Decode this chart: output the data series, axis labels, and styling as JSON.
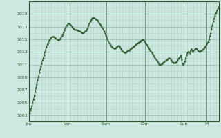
{
  "background_color": "#cce8e0",
  "line_color": "#2d5a2d",
  "marker_color": "#2d5a2d",
  "grid_color_minor": "#b0d4c8",
  "grid_color_major": "#8ab8a8",
  "axis_label_color": "#2d5a2d",
  "spine_color": "#2d5a2d",
  "ylim": [
    1002,
    1021
  ],
  "yticks": [
    1003,
    1005,
    1007,
    1009,
    1011,
    1013,
    1015,
    1017,
    1019
  ],
  "day_labels": [
    "Jeu",
    "Ven",
    "Sam",
    "Dim",
    "Lun",
    "M"
  ],
  "day_positions": [
    0,
    48,
    96,
    144,
    192,
    220
  ],
  "values": [
    1003.0,
    1003.3,
    1003.7,
    1004.1,
    1004.5,
    1005.0,
    1005.5,
    1006.1,
    1006.7,
    1007.3,
    1007.9,
    1008.5,
    1009.1,
    1009.7,
    1010.2,
    1010.7,
    1011.2,
    1011.7,
    1012.1,
    1012.5,
    1013.0,
    1013.4,
    1013.8,
    1014.2,
    1014.5,
    1014.8,
    1015.0,
    1015.2,
    1015.3,
    1015.4,
    1015.4,
    1015.4,
    1015.3,
    1015.2,
    1015.1,
    1015.0,
    1014.9,
    1014.9,
    1015.0,
    1015.1,
    1015.3,
    1015.5,
    1015.8,
    1016.1,
    1016.4,
    1016.7,
    1017.0,
    1017.2,
    1017.4,
    1017.5,
    1017.5,
    1017.4,
    1017.3,
    1017.1,
    1016.9,
    1016.7,
    1016.6,
    1016.5,
    1016.5,
    1016.5,
    1016.4,
    1016.4,
    1016.3,
    1016.3,
    1016.2,
    1016.1,
    1016.0,
    1016.0,
    1016.1,
    1016.2,
    1016.3,
    1016.4,
    1016.6,
    1016.9,
    1017.2,
    1017.5,
    1017.8,
    1018.1,
    1018.3,
    1018.4,
    1018.4,
    1018.4,
    1018.3,
    1018.2,
    1018.1,
    1018.0,
    1017.8,
    1017.6,
    1017.4,
    1017.2,
    1017.0,
    1016.8,
    1016.6,
    1016.3,
    1016.0,
    1015.7,
    1015.4,
    1015.1,
    1014.8,
    1014.5,
    1014.3,
    1014.1,
    1013.9,
    1013.8,
    1013.7,
    1013.6,
    1013.6,
    1013.6,
    1013.7,
    1013.8,
    1013.9,
    1014.0,
    1013.9,
    1013.7,
    1013.5,
    1013.3,
    1013.1,
    1013.0,
    1012.9,
    1012.9,
    1012.9,
    1013.0,
    1013.1,
    1013.2,
    1013.3,
    1013.4,
    1013.5,
    1013.6,
    1013.7,
    1013.8,
    1013.9,
    1014.0,
    1014.1,
    1014.2,
    1014.3,
    1014.4,
    1014.5,
    1014.6,
    1014.7,
    1014.8,
    1014.9,
    1015.0,
    1014.9,
    1014.7,
    1014.5,
    1014.3,
    1014.1,
    1013.9,
    1013.7,
    1013.5,
    1013.3,
    1013.1,
    1012.9,
    1012.7,
    1012.5,
    1012.3,
    1012.1,
    1011.9,
    1011.7,
    1011.5,
    1011.3,
    1011.1,
    1011.0,
    1011.0,
    1011.1,
    1011.2,
    1011.3,
    1011.4,
    1011.5,
    1011.6,
    1011.7,
    1011.8,
    1011.9,
    1012.0,
    1012.0,
    1011.9,
    1011.7,
    1011.5,
    1011.4,
    1011.3,
    1011.3,
    1011.3,
    1011.4,
    1011.5,
    1011.7,
    1011.9,
    1012.1,
    1012.3,
    1012.5,
    1011.8,
    1011.2,
    1011.0,
    1011.2,
    1011.5,
    1012.0,
    1012.5,
    1012.8,
    1013.0,
    1013.0,
    1012.8,
    1013.2,
    1013.5,
    1013.3,
    1013.0,
    1013.2,
    1013.4,
    1013.5,
    1013.6,
    1013.5,
    1013.3,
    1013.1,
    1013.0,
    1013.1,
    1013.2,
    1013.3,
    1013.4,
    1013.5,
    1013.7,
    1013.8,
    1014.0,
    1014.2,
    1014.4,
    1014.6,
    1015.0,
    1015.5,
    1016.0,
    1016.6,
    1017.2,
    1017.8,
    1018.3,
    1018.7,
    1019.0,
    1019.3,
    1019.6,
    1019.9,
    1020.2
  ]
}
